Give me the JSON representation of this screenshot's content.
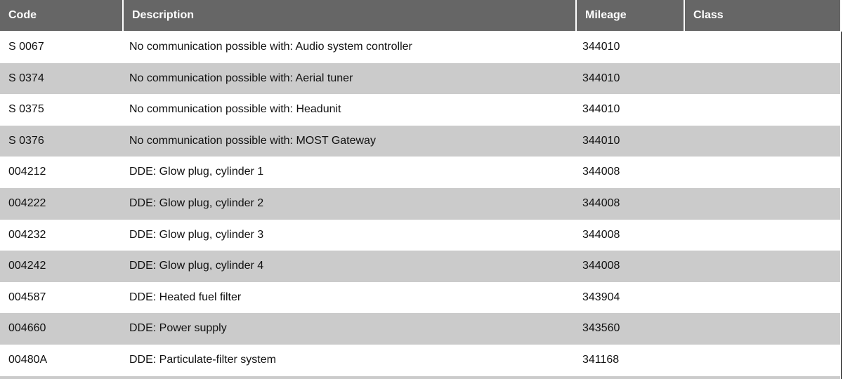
{
  "table": {
    "headers": {
      "code": "Code",
      "description": "Description",
      "mileage": "Mileage",
      "class": "Class"
    },
    "rows": [
      {
        "code": "S 0067",
        "description": "No communication possible with: Audio system controller",
        "mileage": "344010",
        "class": ""
      },
      {
        "code": "S 0374",
        "description": "No communication possible with: Aerial tuner",
        "mileage": "344010",
        "class": ""
      },
      {
        "code": "S 0375",
        "description": "No communication possible with: Headunit",
        "mileage": "344010",
        "class": ""
      },
      {
        "code": "S 0376",
        "description": "No communication possible with: MOST Gateway",
        "mileage": "344010",
        "class": ""
      },
      {
        "code": "004212",
        "description": "DDE: Glow plug, cylinder 1",
        "mileage": "344008",
        "class": ""
      },
      {
        "code": "004222",
        "description": "DDE: Glow plug, cylinder 2",
        "mileage": "344008",
        "class": ""
      },
      {
        "code": "004232",
        "description": "DDE: Glow plug, cylinder 3",
        "mileage": "344008",
        "class": ""
      },
      {
        "code": "004242",
        "description": "DDE: Glow plug, cylinder 4",
        "mileage": "344008",
        "class": ""
      },
      {
        "code": "004587",
        "description": "DDE: Heated fuel filter",
        "mileage": "343904",
        "class": ""
      },
      {
        "code": "004660",
        "description": "DDE: Power supply",
        "mileage": "343560",
        "class": ""
      },
      {
        "code": "00480A",
        "description": "DDE: Particulate-filter system",
        "mileage": "341168",
        "class": ""
      }
    ]
  }
}
